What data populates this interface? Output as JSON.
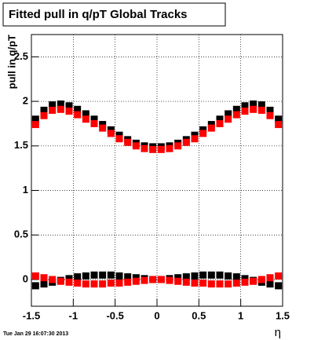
{
  "chart_data": {
    "type": "scatter",
    "title": "Fitted pull in q/pT  Global Tracks",
    "y_label": "pull in q/pT",
    "x_label": "η",
    "timestamp": "Tue Jan 29 16:07:30 2013",
    "x": [
      -1.45,
      -1.35,
      -1.25,
      -1.15,
      -1.05,
      -0.95,
      -0.85,
      -0.75,
      -0.65,
      -0.55,
      -0.45,
      -0.35,
      -0.25,
      -0.15,
      -0.05,
      0.05,
      0.15,
      0.25,
      0.35,
      0.45,
      0.55,
      0.65,
      0.75,
      0.85,
      0.95,
      1.05,
      1.15,
      1.25,
      1.35,
      1.45
    ],
    "series": [
      {
        "color": "#000000",
        "values": [
          1.8,
          1.9,
          1.96,
          1.97,
          1.95,
          1.91,
          1.86,
          1.8,
          1.74,
          1.68,
          1.62,
          1.57,
          1.53,
          1.5,
          1.49,
          1.49,
          1.5,
          1.53,
          1.57,
          1.62,
          1.68,
          1.74,
          1.8,
          1.86,
          1.91,
          1.95,
          1.97,
          1.96,
          1.9,
          1.8
        ]
      },
      {
        "color": "#000000",
        "values": [
          -0.07,
          -0.05,
          -0.03,
          -0.01,
          0.01,
          0.03,
          0.04,
          0.05,
          0.05,
          0.05,
          0.04,
          0.03,
          0.02,
          0.01,
          0.0,
          0.0,
          0.01,
          0.02,
          0.03,
          0.04,
          0.05,
          0.05,
          0.05,
          0.04,
          0.03,
          0.01,
          -0.01,
          -0.03,
          -0.05,
          -0.07
        ]
      },
      {
        "color": "#ff0000",
        "values": [
          1.74,
          1.84,
          1.9,
          1.91,
          1.89,
          1.85,
          1.8,
          1.75,
          1.7,
          1.64,
          1.58,
          1.54,
          1.5,
          1.47,
          1.46,
          1.46,
          1.47,
          1.5,
          1.54,
          1.58,
          1.64,
          1.7,
          1.75,
          1.8,
          1.85,
          1.89,
          1.91,
          1.9,
          1.84,
          1.74
        ]
      },
      {
        "color": "#ff0000",
        "values": [
          0.04,
          0.02,
          0.0,
          -0.02,
          -0.03,
          -0.04,
          -0.05,
          -0.05,
          -0.05,
          -0.04,
          -0.04,
          -0.03,
          -0.02,
          -0.01,
          0.0,
          0.0,
          -0.01,
          -0.02,
          -0.03,
          -0.04,
          -0.04,
          -0.05,
          -0.05,
          -0.05,
          -0.04,
          -0.03,
          -0.02,
          0.0,
          0.02,
          0.04
        ]
      }
    ],
    "xlim": [
      -1.5,
      1.5
    ],
    "xticks": [
      -1.5,
      -1,
      -0.5,
      0,
      0.5,
      1,
      1.5
    ],
    "ylim": [
      -0.3,
      2.75
    ],
    "yticks": [
      0,
      0.5,
      1,
      1.5,
      2,
      2.5
    ],
    "grid": true
  }
}
